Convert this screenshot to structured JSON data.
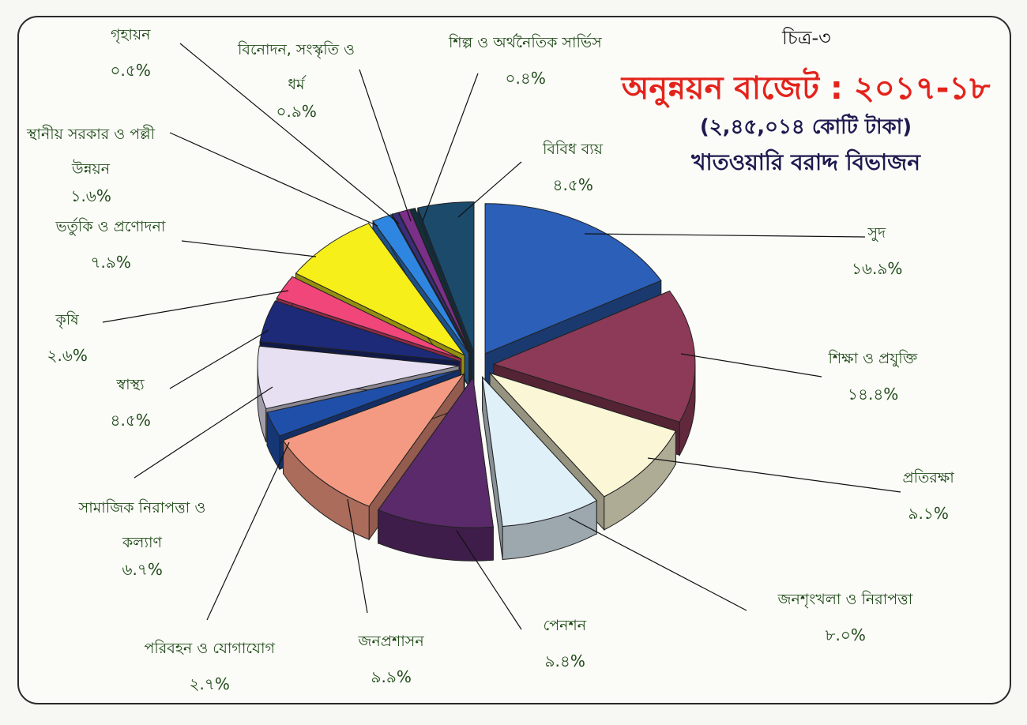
{
  "figure_label": "চিত্র-৩",
  "chart_data": {
    "type": "pie",
    "title": "অনুন্নয়ন বাজেট : ২০১৭-১৮",
    "subtitle": "(২,৪৫,০১৪ কোটি টাকা)",
    "subtitle2": "খাতওয়ারি বরাদ্দ বিভাজন",
    "slices": [
      {
        "label": "সুদ",
        "value": 16.9,
        "value_label": "১৬.৯%",
        "color": "#2b5fb8"
      },
      {
        "label": "শিক্ষা ও প্রযুক্তি",
        "value": 14.4,
        "value_label": "১৪.৪%",
        "color": "#8c3a57"
      },
      {
        "label": "প্রতিরক্ষা",
        "value": 9.1,
        "value_label": "৯.১%",
        "color": "#faf6d6"
      },
      {
        "label": "জনশৃংখলা ও নিরাপত্তা",
        "value": 8.0,
        "value_label": "৮.০%",
        "color": "#dff0f8"
      },
      {
        "label": "পেনশন",
        "value": 9.4,
        "value_label": "৯.৪%",
        "color": "#5a2a6a"
      },
      {
        "label": "জনপ্রশাসন",
        "value": 9.9,
        "value_label": "৯.৯%",
        "color": "#f59a82"
      },
      {
        "label": "পরিবহন ও যোগাযোগ",
        "value": 2.7,
        "value_label": "২.৭%",
        "color": "#1f4fa8"
      },
      {
        "label": "সামাজিক নিরাপত্তা ও কল্যাণ",
        "value": 6.7,
        "value_label": "৬.৭%",
        "color": "#e6e0f2"
      },
      {
        "label": "স্বাস্থ্য",
        "value": 4.5,
        "value_label": "৪.৫%",
        "color": "#1c2a78"
      },
      {
        "label": "কৃষি",
        "value": 2.6,
        "value_label": "২.৬%",
        "color": "#f0467a"
      },
      {
        "label": "ভর্তুকি ও প্রণোদনা",
        "value": 7.9,
        "value_label": "৭.৯%",
        "color": "#f7ef1a"
      },
      {
        "label": "স্থানীয় সরকার ও পল্লী উন্নয়ন",
        "value": 1.6,
        "value_label": "১.৬%",
        "color": "#2f86e0"
      },
      {
        "label": "গৃহায়ন",
        "value": 0.5,
        "value_label": "০.৫%",
        "color": "#3a2d7a"
      },
      {
        "label": "বিনোদন, সংস্কৃতি ও ধর্ম",
        "value": 0.9,
        "value_label": "০.৯%",
        "color": "#7a2f88"
      },
      {
        "label": "শিল্প ও অর্থনৈতিক সার্ভিস",
        "value": 0.4,
        "value_label": "০.৪%",
        "color": "#12303c"
      },
      {
        "label": "বিবিধ ব্যয়",
        "value": 4.5,
        "value_label": "৪.৫%",
        "color": "#1c4a6a"
      }
    ]
  }
}
